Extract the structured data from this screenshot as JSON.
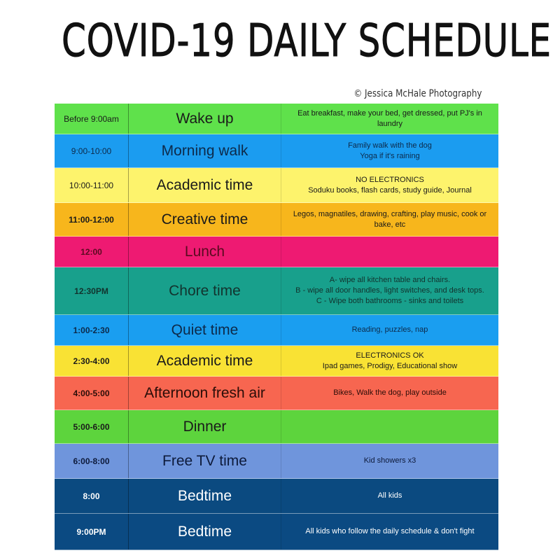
{
  "title": "COVID-19 DAILY SCHEDULE",
  "credit": "© Jessica McHale Photography",
  "rows": [
    {
      "time": "Before 9:00am",
      "activity": "Wake up",
      "details": [
        "Eat breakfast, make your bed, get dressed, put PJ's in laundry"
      ],
      "color": "#5fe14b",
      "text": "#1a1a1a",
      "h": 44,
      "bold": false
    },
    {
      "time": "9:00-10:00",
      "activity": "Morning walk",
      "details": [
        "Family walk with the dog",
        "Yoga if it's raining"
      ],
      "color": "#1b9cf0",
      "text": "#0d2a4a",
      "h": 48,
      "bold": false
    },
    {
      "time": "10:00-11:00",
      "activity": "Academic time",
      "details": [
        "NO ELECTRONICS",
        "Soduku books, flash cards, study guide, Journal"
      ],
      "color": "#fdf36c",
      "text": "#1a1a1a",
      "h": 50,
      "bold": false
    },
    {
      "time": "11:00-12:00",
      "activity": "Creative time",
      "details": [
        "Legos, magnatiles, drawing, crafting, play music, cook or bake, etc"
      ],
      "color": "#f7b61c",
      "text": "#1a1a1a",
      "h": 48,
      "bold": true
    },
    {
      "time": "12:00",
      "activity": "Lunch",
      "details": [],
      "color": "#ee1a72",
      "text": "#5a0a20",
      "h": 44,
      "bold": true
    },
    {
      "time": "12:30PM",
      "activity": "Chore time",
      "details": [
        "A- wipe all kitchen table and chairs.",
        "B - wipe all door handles, light switches, and desk tops.",
        "C - Wipe both bathrooms - sinks and toilets"
      ],
      "color": "#18a08c",
      "text": "#12332e",
      "h": 68,
      "bold": true
    },
    {
      "time": "1:00-2:30",
      "activity": "Quiet time",
      "details": [
        "Reading, puzzles, nap"
      ],
      "color": "#1a9ef0",
      "text": "#0d2a4a",
      "h": 44,
      "bold": true
    },
    {
      "time": "2:30-4:00",
      "activity": "Academic time",
      "details": [
        "ELECTRONICS OK",
        "Ipad games, Prodigy, Educational show"
      ],
      "color": "#f9e234",
      "text": "#1a1a1a",
      "h": 44,
      "bold": true
    },
    {
      "time": "4:00-5:00",
      "activity": "Afternoon fresh air",
      "details": [
        "Bikes, Walk the dog, play outside"
      ],
      "color": "#f76650",
      "text": "#2a0d08",
      "h": 48,
      "bold": true
    },
    {
      "time": "5:00-6:00",
      "activity": "Dinner",
      "details": [],
      "color": "#5dd43d",
      "text": "#1a1a1a",
      "h": 48,
      "bold": true
    },
    {
      "time": "6:00-8:00",
      "activity": "Free TV time",
      "details": [
        "Kid showers x3"
      ],
      "color": "#6f95dc",
      "text": "#0d1a3a",
      "h": 50,
      "bold": true
    },
    {
      "time": "8:00",
      "activity": "Bedtime",
      "details": [
        "All kids"
      ],
      "color": "#0b4a80",
      "text": "#ffffff",
      "h": 50,
      "bold": true
    },
    {
      "time": "9:00PM",
      "activity": "Bedtime",
      "details": [
        "All kids who follow the daily schedule & don't fight"
      ],
      "color": "#0b4a82",
      "text": "#ffffff",
      "h": 52,
      "bold": true
    }
  ]
}
